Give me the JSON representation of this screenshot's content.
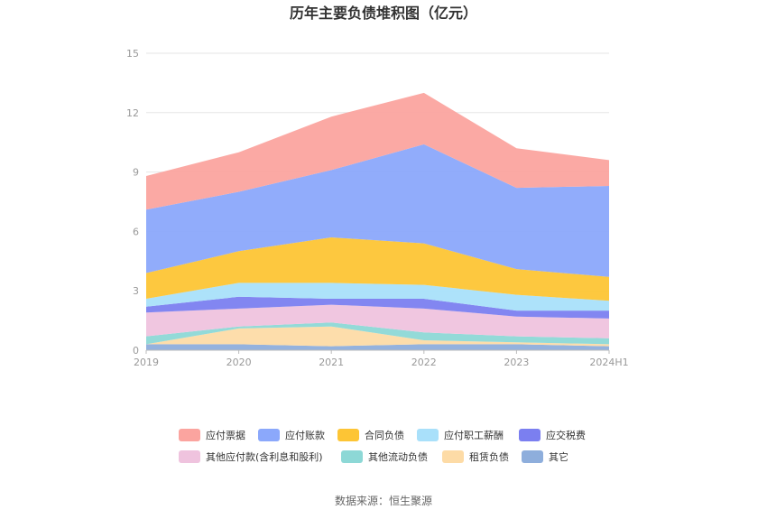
{
  "chart_data": {
    "type": "area",
    "stacked": true,
    "title": "历年主要负债堆积图（亿元）",
    "source": "数据来源：恒生聚源",
    "categories": [
      "2019",
      "2020",
      "2021",
      "2022",
      "2023",
      "2024H1"
    ],
    "ylim": [
      0,
      15
    ],
    "yticks": [
      "0",
      "3",
      "6",
      "9",
      "12",
      "15"
    ],
    "grid": true,
    "legend_position": "bottom",
    "series": [
      {
        "name": "其它",
        "color": "#8eaedc",
        "values": [
          0.3,
          0.3,
          0.2,
          0.3,
          0.3,
          0.2
        ]
      },
      {
        "name": "租赁负债",
        "color": "#fddba6",
        "values": [
          0.0,
          0.8,
          1.0,
          0.2,
          0.1,
          0.1
        ]
      },
      {
        "name": "其他流动负债",
        "color": "#8dd8d6",
        "values": [
          0.4,
          0.1,
          0.2,
          0.4,
          0.3,
          0.3
        ]
      },
      {
        "name": "其他应付款(含利息和股利)",
        "color": "#efc3de",
        "values": [
          1.2,
          0.9,
          0.9,
          1.2,
          1.0,
          1.0
        ]
      },
      {
        "name": "应交税费",
        "color": "#7b7ff0",
        "values": [
          0.3,
          0.6,
          0.3,
          0.5,
          0.3,
          0.4
        ]
      },
      {
        "name": "应付职工薪酬",
        "color": "#a9e0fa",
        "values": [
          0.4,
          0.7,
          0.8,
          0.7,
          0.8,
          0.5
        ]
      },
      {
        "name": "合同负债",
        "color": "#fdc535",
        "values": [
          1.3,
          1.6,
          2.3,
          2.1,
          1.3,
          1.2
        ]
      },
      {
        "name": "应付账款",
        "color": "#8ba8fb",
        "values": [
          3.2,
          3.0,
          3.4,
          5.0,
          4.1,
          4.6
        ]
      },
      {
        "name": "应付票据",
        "color": "#fba49f",
        "values": [
          1.7,
          2.0,
          2.7,
          2.6,
          2.0,
          1.3
        ]
      }
    ]
  }
}
